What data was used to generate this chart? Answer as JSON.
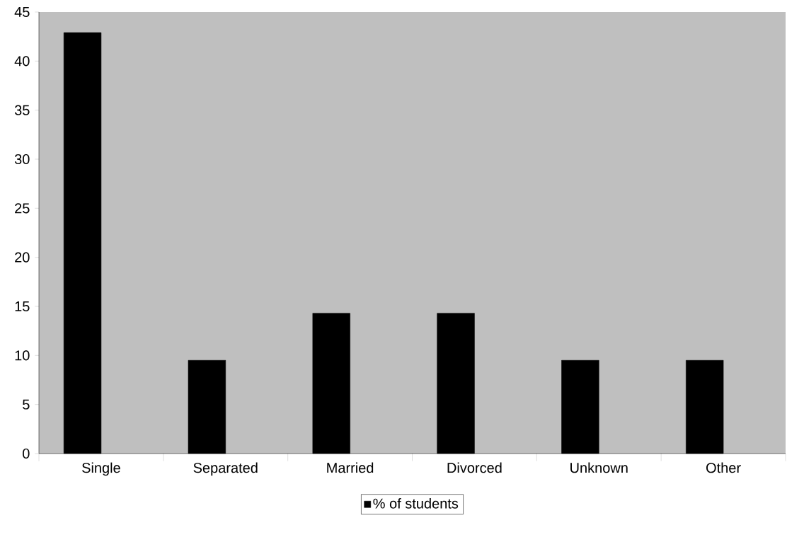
{
  "chart_data": {
    "type": "bar",
    "categories": [
      "Single",
      "Separated",
      "Married",
      "Divorced",
      "Unknown",
      "Other"
    ],
    "series": [
      {
        "name": "% of students",
        "color": "#000000",
        "values": [
          42.9,
          9.5,
          14.3,
          14.3,
          9.5,
          9.5
        ]
      }
    ],
    "ylim": [
      0,
      45
    ],
    "yticks": [
      0,
      5,
      10,
      15,
      20,
      25,
      30,
      35,
      40,
      45
    ],
    "legend": "bottom"
  }
}
